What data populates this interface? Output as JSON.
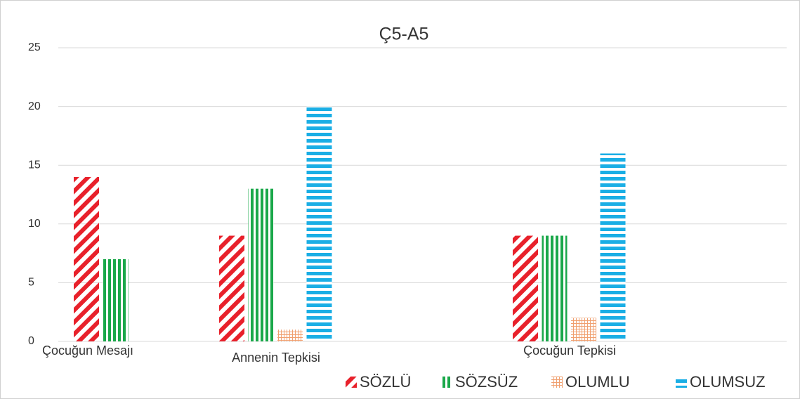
{
  "chart_data": {
    "type": "bar",
    "title": "Ç5-A5",
    "categories": [
      "Çocuğun Mesajı",
      "Annenin Tepkisi",
      "Çocuğun Tepkisi"
    ],
    "series": [
      {
        "name": "SÖZLÜ",
        "color": "#e8212b",
        "pattern": "diagonal",
        "values": [
          14,
          9,
          9
        ]
      },
      {
        "name": "SÖZSÜZ",
        "color": "#1aa84a",
        "pattern": "vertical",
        "values": [
          7,
          13,
          9
        ]
      },
      {
        "name": "OLUMLU",
        "color": "#f0a070",
        "pattern": "grid",
        "values": [
          null,
          1,
          2
        ]
      },
      {
        "name": "OLUMSUZ",
        "color": "#1aaee5",
        "pattern": "horizontal",
        "values": [
          null,
          20,
          16
        ]
      }
    ],
    "ylim": [
      0,
      25
    ],
    "yticks": [
      0,
      5,
      10,
      15,
      20,
      25
    ],
    "grid": true,
    "legend": "bottom"
  }
}
